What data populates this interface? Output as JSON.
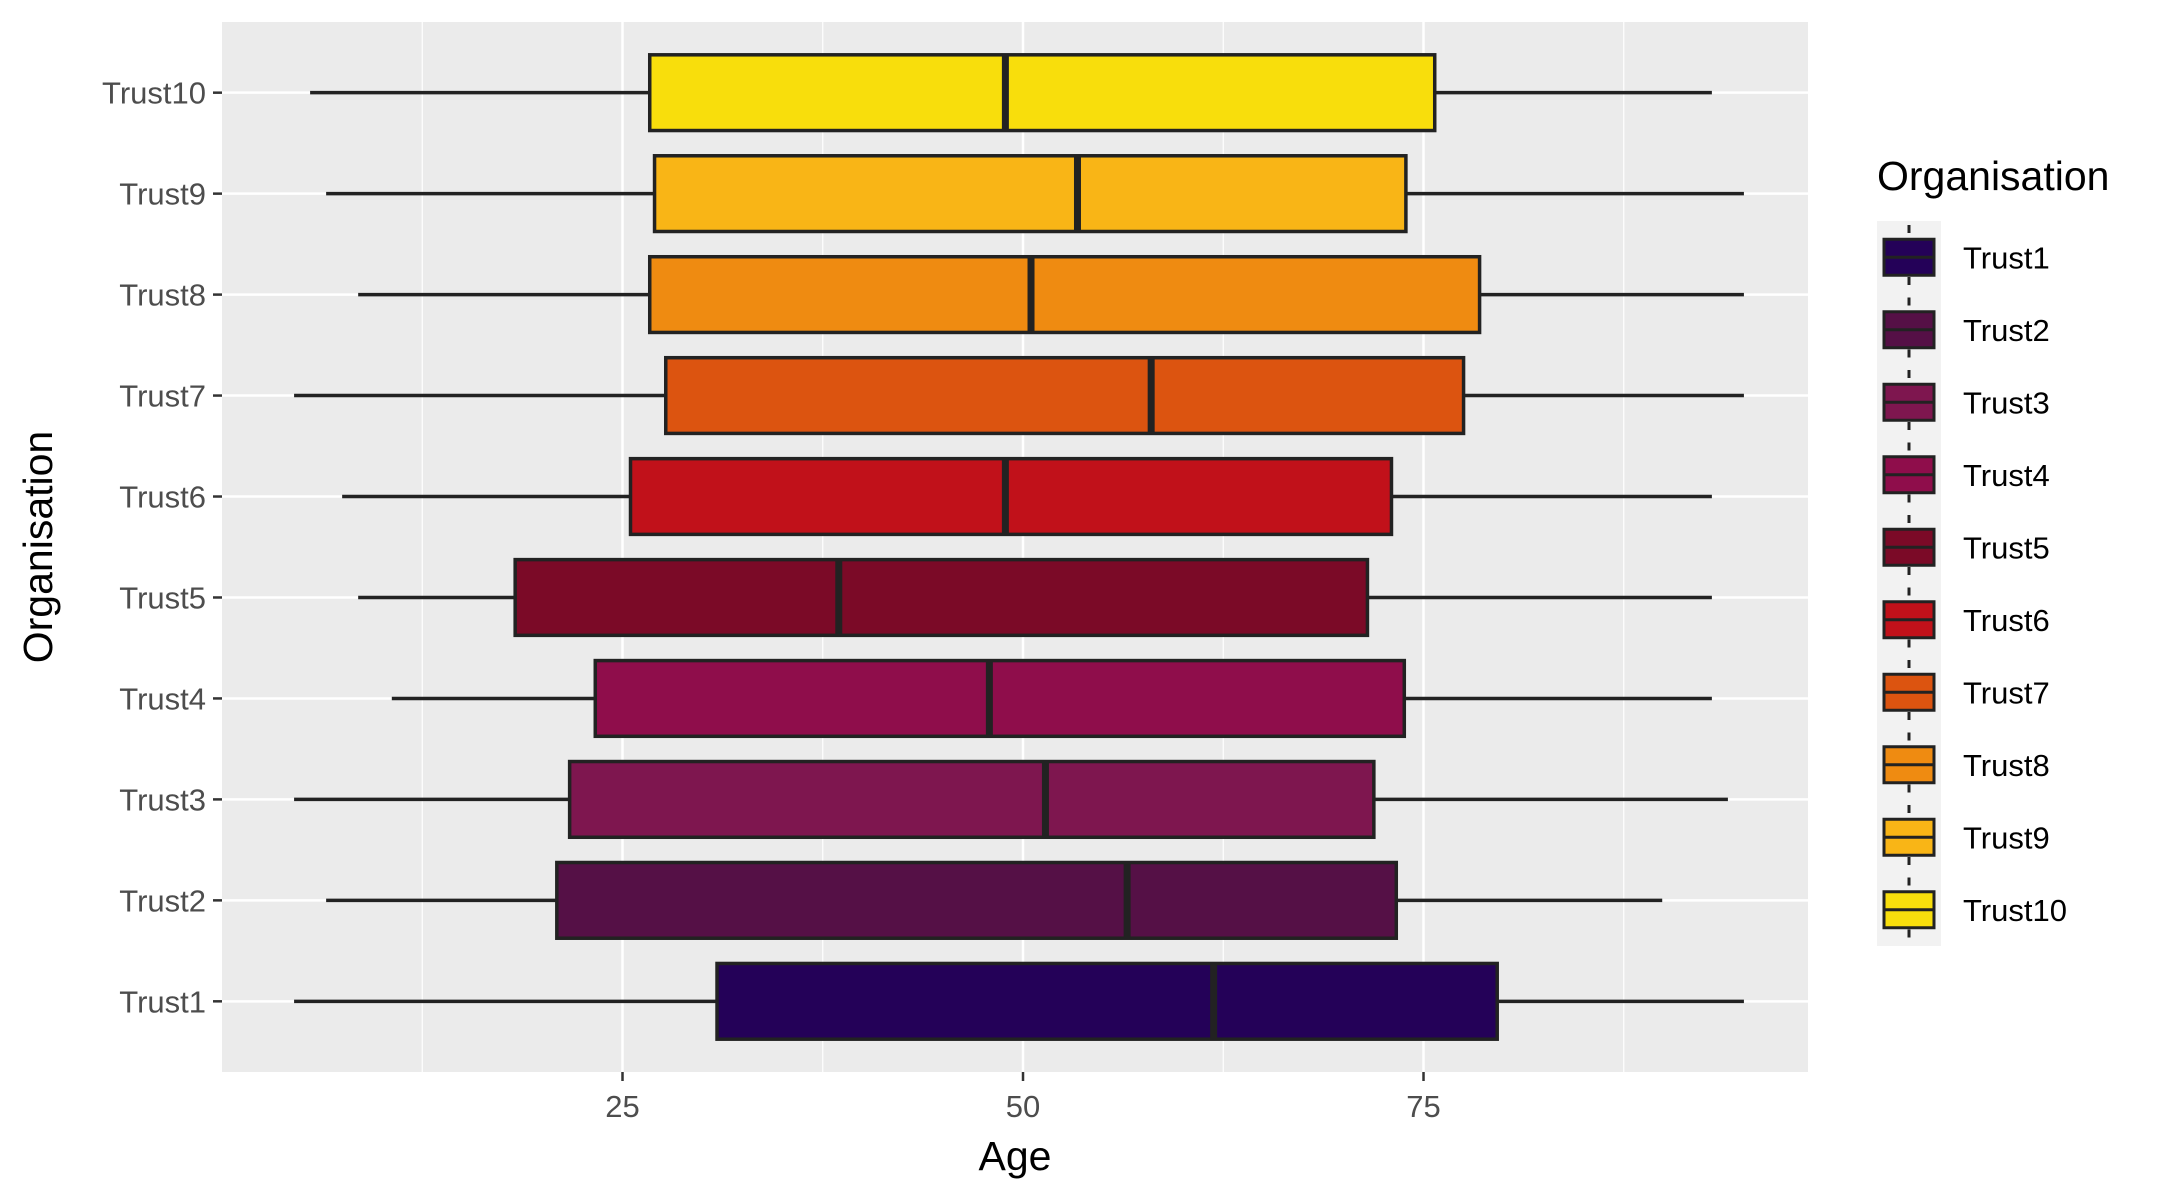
{
  "chart_data": {
    "type": "boxplot",
    "orientation": "horizontal",
    "xlabel": "Age",
    "ylabel": "Organisation",
    "xlim": [
      0,
      99
    ],
    "x_ticks": [
      25,
      50,
      75
    ],
    "grid": true,
    "legend": {
      "title": "Organisation",
      "position": "right",
      "items": [
        "Trust1",
        "Trust2",
        "Trust3",
        "Trust4",
        "Trust5",
        "Trust6",
        "Trust7",
        "Trust8",
        "Trust9",
        "Trust10"
      ]
    },
    "categories": [
      "Trust1",
      "Trust2",
      "Trust3",
      "Trust4",
      "Trust5",
      "Trust6",
      "Trust7",
      "Trust8",
      "Trust9",
      "Trust10"
    ],
    "series": [
      {
        "name": "Trust1",
        "color": "#240158",
        "min": 4.5,
        "q1": 30.9,
        "median": 61.9,
        "q3": 79.6,
        "max": 95.0
      },
      {
        "name": "Trust2",
        "color": "#551046",
        "min": 6.5,
        "q1": 20.9,
        "median": 56.5,
        "q3": 73.3,
        "max": 89.9
      },
      {
        "name": "Trust3",
        "color": "#7E164F",
        "min": 4.5,
        "q1": 21.7,
        "median": 51.4,
        "q3": 71.9,
        "max": 94.0
      },
      {
        "name": "Trust4",
        "color": "#8F0D4B",
        "min": 10.6,
        "q1": 23.3,
        "median": 47.9,
        "q3": 73.8,
        "max": 93.0
      },
      {
        "name": "Trust5",
        "color": "#7B0A27",
        "min": 8.5,
        "q1": 18.3,
        "median": 38.5,
        "q3": 71.5,
        "max": 93.0
      },
      {
        "name": "Trust6",
        "color": "#C1111A",
        "min": 7.5,
        "q1": 25.5,
        "median": 48.9,
        "q3": 73.0,
        "max": 93.0
      },
      {
        "name": "Trust7",
        "color": "#DC5410",
        "min": 4.5,
        "q1": 27.7,
        "median": 58.0,
        "q3": 77.5,
        "max": 95.0
      },
      {
        "name": "Trust8",
        "color": "#EF8B11",
        "min": 8.5,
        "q1": 26.7,
        "median": 50.5,
        "q3": 78.5,
        "max": 95.0
      },
      {
        "name": "Trust9",
        "color": "#F9B516",
        "min": 6.5,
        "q1": 27.0,
        "median": 53.4,
        "q3": 73.9,
        "max": 95.0
      },
      {
        "name": "Trust10",
        "color": "#F8DE0C",
        "min": 5.5,
        "q1": 26.7,
        "median": 48.9,
        "q3": 75.7,
        "max": 93.0
      }
    ]
  }
}
